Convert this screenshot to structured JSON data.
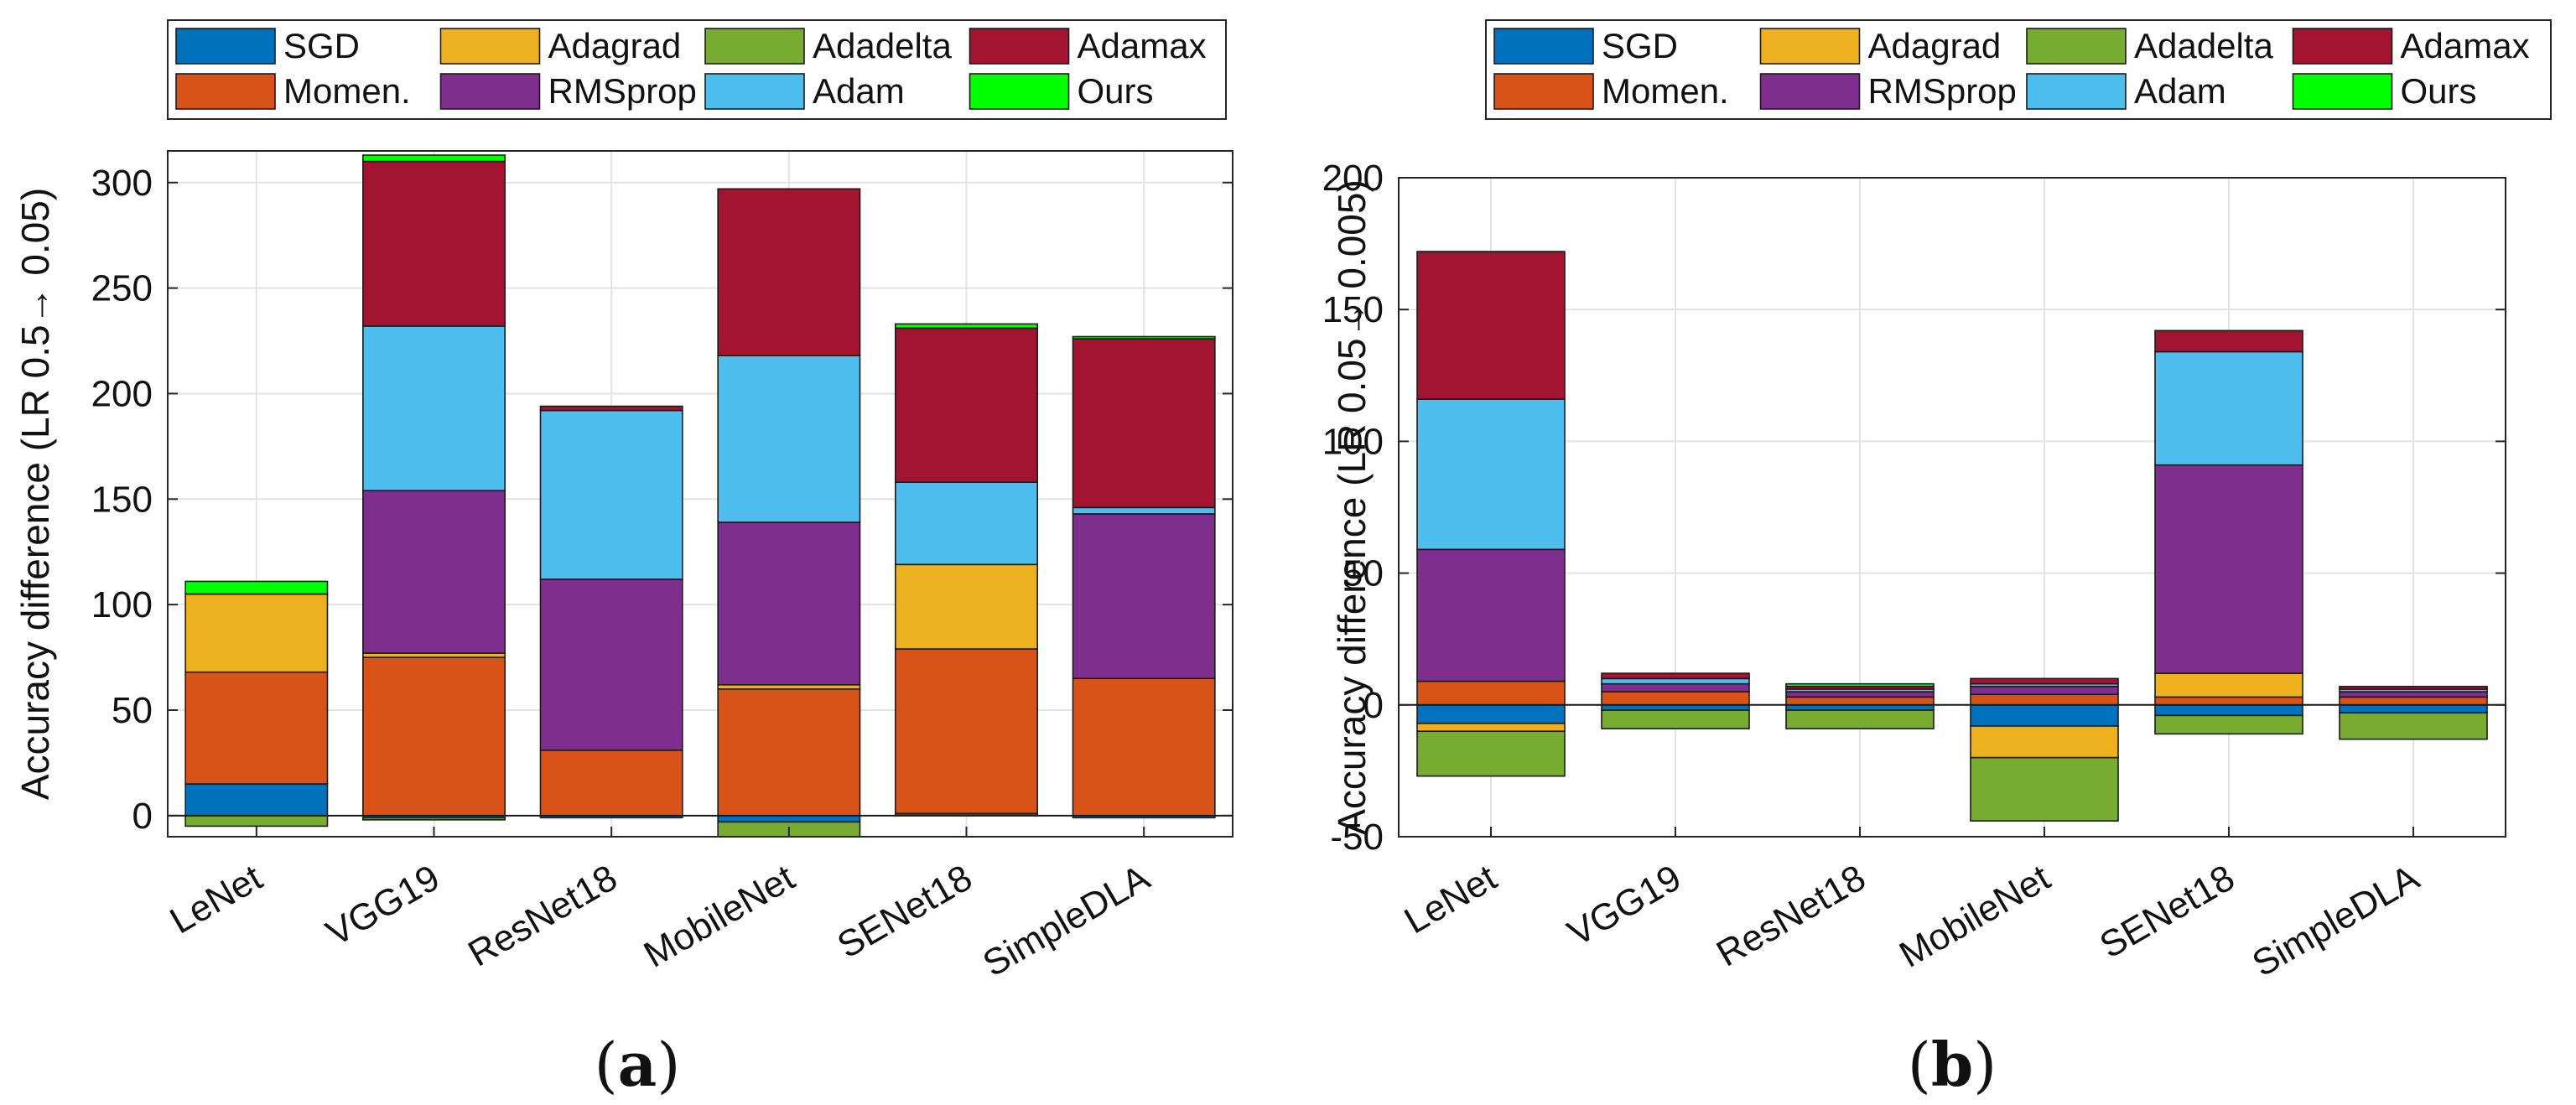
{
  "colors": {
    "SGD": "#0072BD",
    "Momen.": "#D95319",
    "Adagrad": "#EDB120",
    "RMSprop": "#7E2F8E",
    "Adadelta": "#77AC30",
    "Adam": "#4DBEEE",
    "Adamax": "#A2142F",
    "Ours": "#00FF00"
  },
  "legend_order": [
    "SGD",
    "Adagrad",
    "Adadelta",
    "Adamax",
    "Momen.",
    "RMSprop",
    "Adam",
    "Ours"
  ],
  "chart_data": [
    {
      "type": "bar",
      "stacked": true,
      "sublabel_open": "(",
      "sublabel_letter": "a",
      "sublabel_close": ")",
      "ylabel": "Accuracy difference (LR 0.5→ 0.05)",
      "ylim": [
        -10,
        315
      ],
      "yticks": [
        0,
        50,
        100,
        150,
        200,
        250,
        300
      ],
      "grid": true,
      "legend_position": "top",
      "categories": [
        "LeNet",
        "VGG19",
        "ResNet18",
        "MobileNet",
        "SENet18",
        "SimpleDLA"
      ],
      "series": [
        {
          "name": "SGD",
          "values": [
            15,
            -1,
            -1,
            -3,
            1,
            -1
          ]
        },
        {
          "name": "Momen.",
          "values": [
            53,
            75,
            31,
            60,
            78,
            65
          ]
        },
        {
          "name": "Adagrad",
          "values": [
            37,
            2,
            0,
            2,
            40,
            0
          ]
        },
        {
          "name": "RMSprop",
          "values": [
            0,
            77,
            81,
            77,
            0,
            78
          ]
        },
        {
          "name": "Adadelta",
          "values": [
            -5,
            -1,
            0,
            -7,
            0,
            0
          ]
        },
        {
          "name": "Adam",
          "values": [
            0,
            78,
            80,
            79,
            39,
            3
          ]
        },
        {
          "name": "Adamax",
          "values": [
            0,
            78,
            2,
            79,
            73,
            80
          ]
        },
        {
          "name": "Ours",
          "values": [
            6,
            3,
            0,
            0,
            2,
            1
          ]
        }
      ]
    },
    {
      "type": "bar",
      "stacked": true,
      "sublabel_open": "(",
      "sublabel_letter": "b",
      "sublabel_close": ")",
      "ylabel": "Accuracy difference (LR 0.05→ 0.005)",
      "ylim": [
        -50,
        200
      ],
      "yticks": [
        -50,
        0,
        50,
        100,
        150,
        200
      ],
      "grid": true,
      "legend_position": "top",
      "categories": [
        "LeNet",
        "VGG19",
        "ResNet18",
        "MobileNet",
        "SENet18",
        "SimpleDLA"
      ],
      "series": [
        {
          "name": "SGD",
          "values": [
            -7,
            -2,
            -2,
            -8,
            -4,
            -3
          ]
        },
        {
          "name": "Momen.",
          "values": [
            9,
            5,
            3,
            4,
            3,
            3
          ]
        },
        {
          "name": "Adagrad",
          "values": [
            -3,
            0,
            0,
            -12,
            9,
            0
          ]
        },
        {
          "name": "RMSprop",
          "values": [
            50,
            3,
            2,
            3,
            79,
            2
          ]
        },
        {
          "name": "Adadelta",
          "values": [
            -17,
            -7,
            -7,
            -24,
            -7,
            -10
          ]
        },
        {
          "name": "Adam",
          "values": [
            57,
            2,
            1,
            1,
            43,
            1
          ]
        },
        {
          "name": "Adamax",
          "values": [
            56,
            2,
            1,
            2,
            8,
            1
          ]
        },
        {
          "name": "Ours",
          "values": [
            0,
            0,
            1,
            0,
            0,
            0
          ]
        }
      ]
    }
  ]
}
